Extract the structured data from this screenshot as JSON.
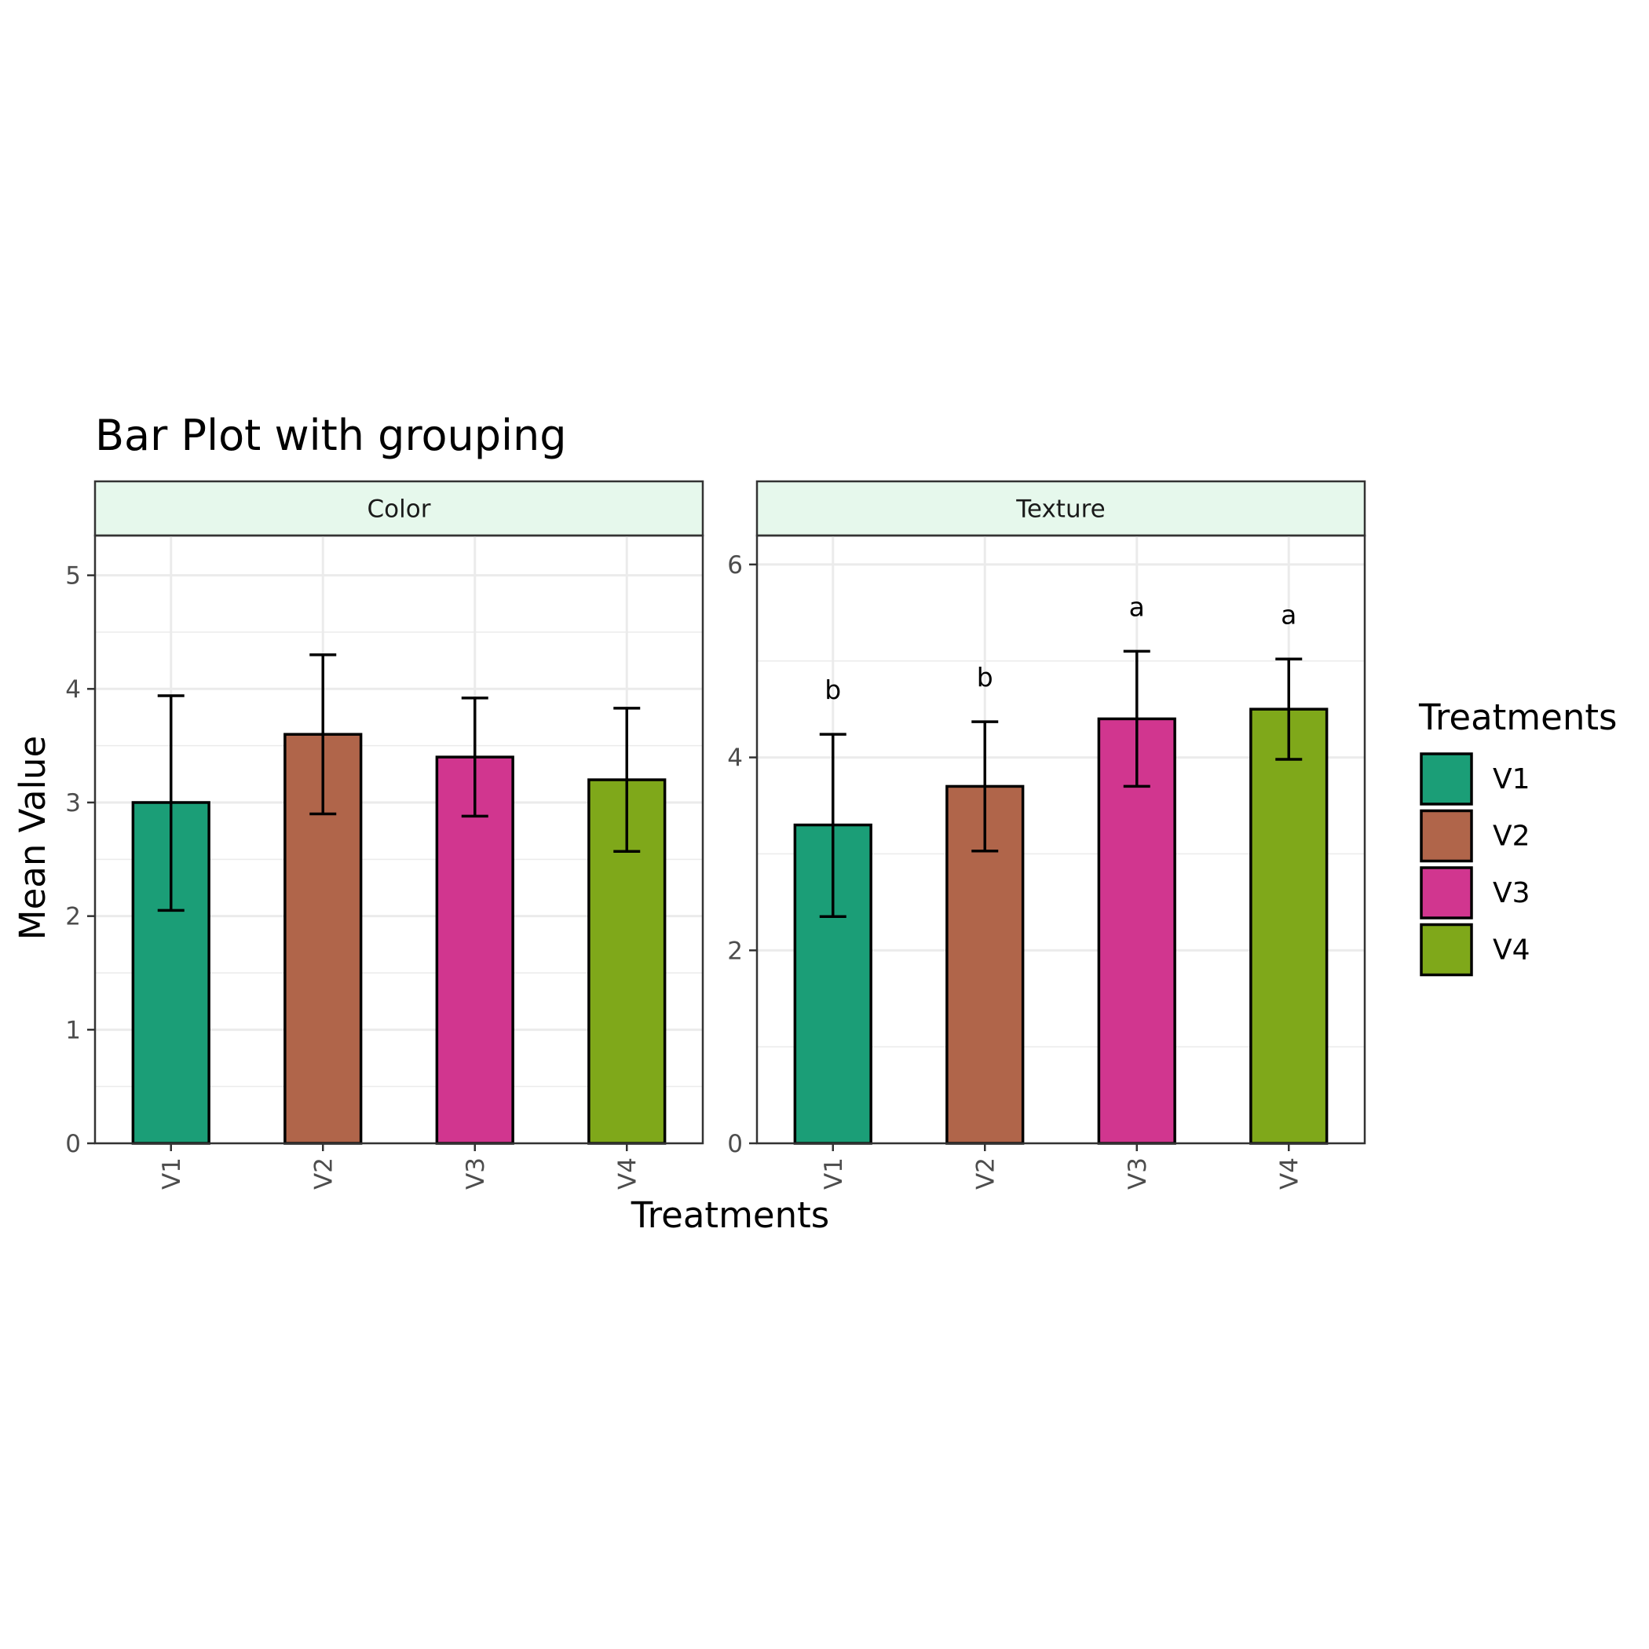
{
  "chart_data": {
    "type": "bar",
    "title": "Bar Plot with grouping",
    "xlabel": "Treatments",
    "ylabel": "Mean Value",
    "categories": [
      "V1",
      "V2",
      "V3",
      "V4"
    ],
    "colors": {
      "V1": "#1b9e77",
      "V2": "#b0654a",
      "V3": "#d1368f",
      "V4": "#7fa81a"
    },
    "strip_fill": "#e6f8ec",
    "grid": true,
    "legend": {
      "title": "Treatments",
      "position": "right",
      "entries": [
        "V1",
        "V2",
        "V3",
        "V4"
      ]
    },
    "panels": [
      {
        "name": "Color",
        "ylim": [
          0,
          5.35
        ],
        "yticks": [
          0,
          1,
          2,
          3,
          4,
          5
        ],
        "values": [
          3.0,
          3.6,
          3.4,
          3.2
        ],
        "error_low": [
          2.05,
          2.9,
          2.88,
          2.57
        ],
        "error_high": [
          3.94,
          4.3,
          3.92,
          3.83
        ],
        "annotations": [
          "",
          "",
          "",
          ""
        ]
      },
      {
        "name": "Texture",
        "ylim": [
          0,
          6.3
        ],
        "yticks": [
          0,
          2,
          4,
          6
        ],
        "values": [
          3.3,
          3.7,
          4.4,
          4.5
        ],
        "error_low": [
          2.35,
          3.03,
          3.7,
          3.98
        ],
        "error_high": [
          4.24,
          4.37,
          5.1,
          5.02
        ],
        "annotations": [
          "b",
          "b",
          "a",
          "a"
        ]
      }
    ]
  }
}
